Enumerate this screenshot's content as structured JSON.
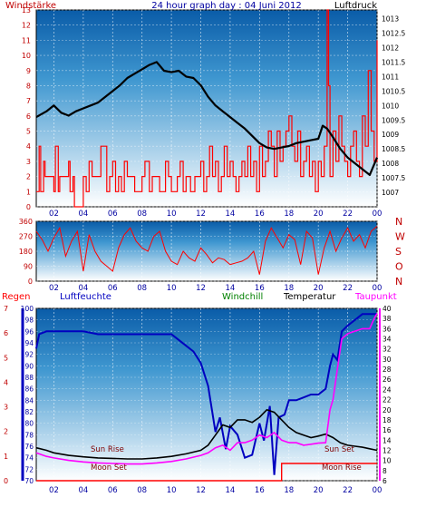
{
  "chart_data": [
    {
      "id": "wind-pressure",
      "type": "line",
      "title": "24 hour graph day : 04 Juni 2012",
      "left_axis_label": "Windstärke",
      "right_axis_label": "Luftdruck",
      "left_ylim": [
        0,
        13
      ],
      "left_ticks": [
        "0",
        "1",
        "2",
        "3",
        "4",
        "5",
        "6",
        "7",
        "8",
        "9",
        "10",
        "11",
        "12",
        "13"
      ],
      "right_ylim": [
        1006.5,
        1013.3
      ],
      "right_ticks": [
        "1007",
        "1007.5",
        "1008",
        "1008.5",
        "1009",
        "1009.5",
        "1010",
        "1010.5",
        "1011",
        "1011.5",
        "1012",
        "1012.5",
        "1013"
      ],
      "x_tick_labels": [
        "02",
        "04",
        "06",
        "08",
        "10",
        "12",
        "14",
        "16",
        "18",
        "20",
        "22",
        "00"
      ],
      "xlim_hours": [
        0.8,
        24.0
      ],
      "grid": true,
      "series": [
        {
          "color": "#000000",
          "axis": "right",
          "x": [
            0.8,
            1.5,
            2.0,
            2.5,
            3.0,
            3.5,
            4.0,
            4.5,
            5.0,
            5.5,
            6.0,
            6.5,
            7.0,
            7.5,
            8.0,
            8.5,
            9.0,
            9.5,
            10.0,
            10.5,
            11.0,
            11.5,
            12.0,
            12.5,
            13.0,
            13.5,
            14.0,
            14.5,
            15.0,
            15.5,
            16.0,
            16.5,
            17.0,
            17.5,
            18.0,
            18.5,
            19.0,
            19.5,
            20.0,
            20.3,
            20.6,
            21.0,
            21.5,
            22.0,
            22.5,
            23.0,
            23.5,
            24.0
          ],
          "y": [
            1009.6,
            1009.8,
            1010.0,
            1009.75,
            1009.65,
            1009.8,
            1009.9,
            1010.0,
            1010.1,
            1010.3,
            1010.5,
            1010.7,
            1010.95,
            1011.1,
            1011.25,
            1011.4,
            1011.5,
            1011.2,
            1011.15,
            1011.2,
            1011.0,
            1010.95,
            1010.7,
            1010.3,
            1010.0,
            1009.8,
            1009.6,
            1009.4,
            1009.2,
            1008.95,
            1008.7,
            1008.55,
            1008.5,
            1008.55,
            1008.6,
            1008.7,
            1008.75,
            1008.8,
            1008.85,
            1009.3,
            1009.2,
            1008.9,
            1008.5,
            1008.2,
            1008.0,
            1007.8,
            1007.6,
            1008.2
          ]
        },
        {
          "color": "#ff0000",
          "axis": "left",
          "x": [
            0.8,
            1.0,
            1.1,
            1.3,
            1.4,
            2.0,
            2.1,
            2.3,
            2.4,
            3.0,
            3.1,
            3.3,
            3.4,
            4.0,
            4.2,
            4.4,
            4.6,
            5.0,
            5.2,
            5.6,
            5.8,
            6.0,
            6.2,
            6.4,
            6.6,
            6.8,
            7.0,
            7.5,
            8.0,
            8.2,
            8.5,
            8.7,
            9.0,
            9.2,
            9.6,
            9.8,
            10.0,
            10.4,
            10.6,
            10.8,
            11.0,
            11.3,
            11.6,
            12.0,
            12.2,
            12.4,
            12.6,
            12.8,
            13.0,
            13.2,
            13.4,
            13.6,
            13.8,
            14.0,
            14.2,
            14.4,
            14.6,
            14.8,
            15.0,
            15.2,
            15.4,
            15.6,
            15.8,
            16.0,
            16.2,
            16.4,
            16.6,
            16.8,
            17.0,
            17.2,
            17.4,
            17.6,
            17.8,
            18.0,
            18.2,
            18.4,
            18.6,
            18.8,
            19.0,
            19.2,
            19.4,
            19.6,
            19.8,
            20.0,
            20.2,
            20.4,
            20.6,
            20.7,
            20.8,
            21.0,
            21.2,
            21.4,
            21.6,
            21.8,
            22.0,
            22.2,
            22.4,
            22.6,
            22.8,
            23.0,
            23.2,
            23.4,
            23.6,
            23.8,
            24.0
          ],
          "y": [
            1,
            4,
            1,
            3,
            2,
            1,
            4,
            1,
            2,
            3,
            1,
            2,
            0,
            2,
            1,
            3,
            2,
            2,
            4,
            1,
            2,
            3,
            1,
            2,
            1,
            3,
            2,
            1,
            2,
            3,
            1,
            2,
            2,
            1,
            3,
            2,
            1,
            2,
            3,
            1,
            2,
            1,
            2,
            3,
            1,
            2,
            4,
            2,
            3,
            1,
            2,
            4,
            2,
            3,
            2,
            1,
            2,
            3,
            2,
            4,
            2,
            3,
            1,
            4,
            2,
            3,
            5,
            4,
            2,
            5,
            3,
            4,
            5,
            6,
            4,
            3,
            5,
            2,
            3,
            4,
            2,
            3,
            1,
            3,
            2,
            4,
            13,
            8,
            2,
            5,
            3,
            6,
            4,
            3,
            2,
            4,
            5,
            3,
            2,
            6,
            4,
            9,
            5,
            3,
            11
          ]
        }
      ]
    },
    {
      "id": "wind-direction",
      "type": "line",
      "left_ylim": [
        0,
        360
      ],
      "left_ticks": [
        "0",
        "90",
        "180",
        "270",
        "360"
      ],
      "right_labels": [
        "N",
        "W",
        "S",
        "O",
        "N"
      ],
      "x_tick_labels": [
        "02",
        "04",
        "06",
        "08",
        "10",
        "12",
        "14",
        "16",
        "18",
        "20",
        "22",
        "00"
      ],
      "xlim_hours": [
        0.8,
        24.0
      ],
      "series": [
        {
          "color": "#ff0000",
          "x": [
            0.8,
            1.2,
            1.6,
            2.0,
            2.4,
            2.8,
            3.2,
            3.6,
            4.0,
            4.4,
            4.8,
            5.2,
            5.6,
            6.0,
            6.4,
            6.8,
            7.2,
            7.6,
            8.0,
            8.4,
            8.8,
            9.2,
            9.6,
            10.0,
            10.4,
            10.8,
            11.2,
            11.6,
            12.0,
            12.4,
            12.8,
            13.2,
            13.6,
            14.0,
            14.4,
            14.8,
            15.2,
            15.6,
            16.0,
            16.4,
            16.8,
            17.2,
            17.6,
            18.0,
            18.4,
            18.8,
            19.2,
            19.6,
            20.0,
            20.4,
            20.8,
            21.2,
            21.6,
            22.0,
            22.4,
            22.8,
            23.2,
            23.6,
            24.0
          ],
          "y": [
            300,
            250,
            180,
            260,
            320,
            150,
            240,
            300,
            60,
            280,
            180,
            120,
            90,
            60,
            200,
            280,
            320,
            240,
            200,
            180,
            270,
            300,
            180,
            120,
            100,
            180,
            140,
            120,
            200,
            160,
            110,
            140,
            130,
            100,
            110,
            120,
            140,
            180,
            40,
            240,
            320,
            260,
            200,
            280,
            250,
            100,
            300,
            260,
            40,
            200,
            300,
            180,
            260,
            320,
            240,
            280,
            200,
            300,
            330
          ]
        }
      ]
    },
    {
      "id": "humidity-temperature",
      "type": "line",
      "legend": [
        "Regen",
        "Luftfeuchte",
        "Windchill",
        "Temperatur",
        "Taupunkt"
      ],
      "legend_colors": [
        "#ff0000",
        "#0000c0",
        "#008000",
        "#000000",
        "#ff00ff"
      ],
      "left_outer_ticks": [
        "0",
        "1",
        "2",
        "3",
        "4",
        "5",
        "6",
        "7"
      ],
      "left_inner_ylim": [
        70,
        100
      ],
      "left_inner_ticks": [
        "70",
        "72",
        "74",
        "76",
        "78",
        "80",
        "82",
        "84",
        "86",
        "88",
        "90",
        "92",
        "94",
        "96",
        "98",
        "100"
      ],
      "right_ylim": [
        6,
        40
      ],
      "right_ticks": [
        "6",
        "8",
        "10",
        "12",
        "14",
        "16",
        "18",
        "20",
        "22",
        "24",
        "26",
        "28",
        "30",
        "32",
        "34",
        "36",
        "38",
        "40"
      ],
      "x_tick_labels": [
        "02",
        "04",
        "06",
        "08",
        "10",
        "12",
        "14",
        "16",
        "18",
        "20",
        "22",
        "00"
      ],
      "xlim_hours": [
        0.8,
        24.0
      ],
      "annotations": [
        "Sun Rise",
        "Moon Set",
        "Sun Set",
        "Moon Rise"
      ],
      "series": [
        {
          "color": "#0000c0",
          "axis": "left_inner",
          "x": [
            0.8,
            1.0,
            1.5,
            2.0,
            4.0,
            5.0,
            6.0,
            7.0,
            8.0,
            9.0,
            10.0,
            10.5,
            11.0,
            11.5,
            12.0,
            12.5,
            13.0,
            13.3,
            13.7,
            14.0,
            14.5,
            15.0,
            15.5,
            16.0,
            16.3,
            16.7,
            17.0,
            17.3,
            17.7,
            18.0,
            18.5,
            19.0,
            19.5,
            20.0,
            20.5,
            20.8,
            21.0,
            21.3,
            21.6,
            22.0,
            22.5,
            23.0,
            23.5,
            24.0
          ],
          "y": [
            93,
            95.5,
            96,
            96,
            96,
            95.5,
            95.5,
            95.5,
            95.5,
            95.5,
            95.5,
            94.5,
            93.5,
            92.5,
            90.5,
            86.5,
            78.5,
            81,
            75.5,
            79.5,
            78,
            74,
            74.5,
            80,
            77,
            83,
            71,
            81,
            81.5,
            84,
            84,
            84.5,
            85,
            85,
            86,
            90,
            92,
            91,
            96,
            97,
            98,
            99,
            99,
            99
          ]
        },
        {
          "color": "#000000",
          "axis": "right",
          "x": [
            0.8,
            1.5,
            2.0,
            3.0,
            4.0,
            5.0,
            6.0,
            7.0,
            8.0,
            9.0,
            10.0,
            11.0,
            12.0,
            12.5,
            13.0,
            13.5,
            14.0,
            14.5,
            15.0,
            15.5,
            16.0,
            16.5,
            17.0,
            17.5,
            18.0,
            18.5,
            19.0,
            19.5,
            20.0,
            20.5,
            21.0,
            21.5,
            22.0,
            22.5,
            23.0,
            23.5,
            24.0
          ],
          "y": [
            12.5,
            12.0,
            11.5,
            11.0,
            10.7,
            10.5,
            10.4,
            10.3,
            10.3,
            10.5,
            10.8,
            11.3,
            12.0,
            13.0,
            15.0,
            17.0,
            16.5,
            18.0,
            18.0,
            17.5,
            18.5,
            20.0,
            19.5,
            18.0,
            16.5,
            15.5,
            15.0,
            14.5,
            14.8,
            15.2,
            14.5,
            13.5,
            13.0,
            12.8,
            12.6,
            12.3,
            12.0
          ]
        },
        {
          "color": "#ff00ff",
          "axis": "right",
          "x": [
            0.8,
            1.5,
            2.0,
            3.0,
            4.0,
            5.0,
            6.0,
            7.0,
            8.0,
            9.0,
            10.0,
            11.0,
            12.0,
            12.5,
            13.0,
            13.5,
            14.0,
            14.5,
            15.0,
            15.5,
            16.0,
            16.5,
            17.0,
            17.5,
            18.0,
            18.5,
            19.0,
            19.5,
            20.0,
            20.5,
            20.8,
            21.0,
            21.3,
            21.6,
            22.0,
            22.5,
            23.0,
            23.5,
            23.8,
            24.0
          ],
          "y": [
            11.5,
            10.8,
            10.5,
            10.0,
            9.7,
            9.5,
            9.4,
            9.3,
            9.3,
            9.5,
            9.8,
            10.3,
            11.0,
            11.5,
            12.5,
            13.0,
            12.0,
            13.5,
            13.5,
            14.0,
            15.0,
            14.5,
            15.5,
            14.0,
            13.5,
            13.5,
            13.0,
            13.2,
            13.4,
            13.5,
            20.0,
            22.0,
            28.0,
            34.0,
            35.0,
            35.5,
            36.0,
            36.0,
            38.0,
            39.0
          ]
        },
        {
          "color": "#ff0000",
          "axis": "left_outer",
          "x": [
            0.8,
            7.2,
            7.2,
            12.5,
            17.5,
            17.5,
            20.8,
            20.8,
            24.0
          ],
          "y": [
            0,
            0,
            0,
            0,
            0,
            0.7,
            0.7,
            0.7,
            0.7
          ]
        }
      ]
    }
  ]
}
